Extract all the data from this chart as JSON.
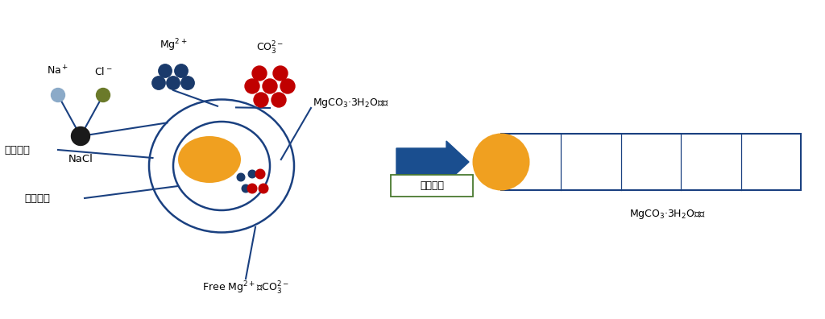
{
  "bg_color": "#ffffff",
  "blue_dark": "#1a3a6b",
  "blue_line": "#1a4080",
  "na_color": "#8BAAC8",
  "cl_color": "#6B7A2A",
  "nacl_color": "#1a1a1a",
  "mg_color": "#1a3a6b",
  "co3_color": "#C00000",
  "gold_color": "#F0A020",
  "arrow_color": "#1a4E8F",
  "box_edge_color": "#4a7a30",
  "rod_color": "#1a4080",
  "labels": {
    "na": "Na$^+$",
    "cl": "Cl$^-$",
    "mg": "Mg$^{2+}$",
    "co3": "CO$_3^{2-}$",
    "nacl": "NaCl",
    "liquid_interface": "液相界面",
    "solid_interface": "固液界面",
    "nucleus": "MgCO$_3$·3H$_2$O晶核",
    "free_ions": "Free Mg$^{2+}$、CO$_3^{2-}$",
    "growth_dir": "生长方向",
    "crystal": "MgCO$_3$·3H$_2$O晶体"
  },
  "figsize": [
    10.24,
    3.96
  ],
  "dpi": 100
}
